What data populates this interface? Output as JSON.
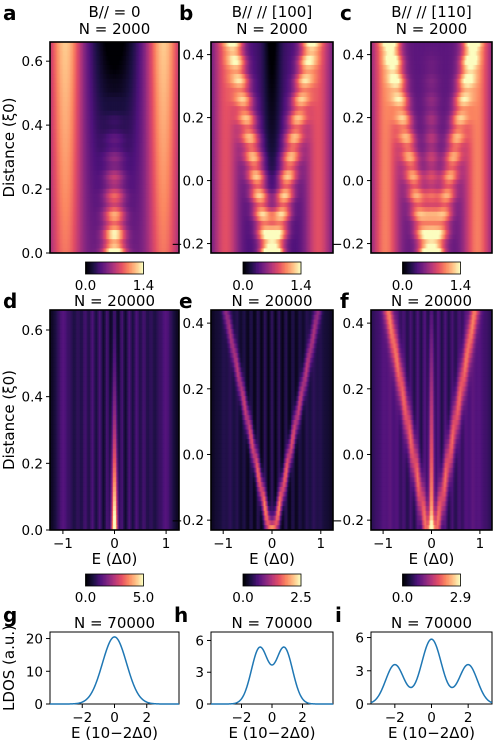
{
  "chart_data": [
    {
      "panel": "a",
      "type": "heatmap",
      "title_lines": [
        "B// = 0",
        "N = 2000"
      ],
      "xlim": [
        -1.25,
        1.25
      ],
      "ylim": [
        0,
        0.66
      ],
      "yticks": [
        0.0,
        0.2,
        0.4,
        0.6
      ],
      "ytick_labels": [
        "0.0",
        "0.2",
        "0.4",
        "0.6"
      ],
      "ylabel": "Distance (ξ0)",
      "pattern": "single_peak",
      "colorbar": {
        "range": [
          0.0,
          1.4
        ],
        "tick_labels": [
          "0.0",
          "1.4"
        ]
      }
    },
    {
      "panel": "b",
      "type": "heatmap",
      "title_lines": [
        "B// // [100]",
        "N = 2000"
      ],
      "xlim": [
        -1.25,
        1.25
      ],
      "ylim": [
        -0.23,
        0.44
      ],
      "yticks": [
        -0.2,
        0.0,
        0.2,
        0.4
      ],
      "ytick_labels": [
        "−0.2",
        "0.0",
        "0.2",
        "0.4"
      ],
      "pattern": "v_split",
      "colorbar": {
        "range": [
          0.0,
          1.4
        ],
        "tick_labels": [
          "0.0",
          "1.4"
        ]
      }
    },
    {
      "panel": "c",
      "type": "heatmap",
      "title_lines": [
        "B// // [110]",
        "N = 2000"
      ],
      "xlim": [
        -1.25,
        1.25
      ],
      "ylim": [
        -0.23,
        0.44
      ],
      "yticks": [
        -0.2,
        0.0,
        0.2,
        0.4
      ],
      "ytick_labels": [
        "−0.2",
        "0.0",
        "0.2",
        "0.4"
      ],
      "pattern": "triple",
      "colorbar": {
        "range": [
          0.0,
          1.4
        ],
        "tick_labels": [
          "0.0",
          "1.4"
        ]
      }
    },
    {
      "panel": "d",
      "type": "heatmap",
      "title_lines": [
        "N = 20000"
      ],
      "xlim": [
        -1.25,
        1.25
      ],
      "ylim": [
        0,
        0.66
      ],
      "yticks": [
        0.0,
        0.2,
        0.4,
        0.6
      ],
      "ytick_labels": [
        "0.0",
        "0.2",
        "0.4",
        "0.6"
      ],
      "xticks": [
        -1,
        0,
        1
      ],
      "xtick_labels": [
        "−1",
        "0",
        "1"
      ],
      "ylabel": "Distance (ξ0)",
      "xlabel": "E (Δ0)",
      "pattern": "fine_single",
      "colorbar": {
        "range": [
          0.0,
          5.0
        ],
        "tick_labels": [
          "0.0",
          "5.0"
        ]
      }
    },
    {
      "panel": "e",
      "type": "heatmap",
      "title_lines": [
        "N = 20000"
      ],
      "xlim": [
        -1.25,
        1.25
      ],
      "ylim": [
        -0.23,
        0.44
      ],
      "yticks": [
        -0.2,
        0.0,
        0.2,
        0.4
      ],
      "ytick_labels": [
        "−0.2",
        "0.0",
        "0.2",
        "0.4"
      ],
      "xticks": [
        -1,
        0,
        1
      ],
      "xtick_labels": [
        "−1",
        "0",
        "1"
      ],
      "xlabel": "E (Δ0)",
      "pattern": "fine_split",
      "colorbar": {
        "range": [
          0.0,
          2.5
        ],
        "tick_labels": [
          "0.0",
          "2.5"
        ]
      }
    },
    {
      "panel": "f",
      "type": "heatmap",
      "title_lines": [
        "N = 20000"
      ],
      "xlim": [
        -1.25,
        1.25
      ],
      "ylim": [
        -0.23,
        0.44
      ],
      "yticks": [
        -0.2,
        0.0,
        0.2,
        0.4
      ],
      "ytick_labels": [
        "−0.2",
        "0.0",
        "0.2",
        "0.4"
      ],
      "xticks": [
        -1,
        0,
        1
      ],
      "xtick_labels": [
        "−1",
        "0",
        "1"
      ],
      "xlabel": "E (Δ0)",
      "pattern": "fine_triple",
      "colorbar": {
        "range": [
          0.0,
          2.9
        ],
        "tick_labels": [
          "0.0",
          "2.9"
        ]
      }
    },
    {
      "panel": "g",
      "type": "line",
      "title_lines": [
        "N = 70000"
      ],
      "xlim": [
        -4,
        4
      ],
      "ylim": [
        0,
        22
      ],
      "xticks": [
        -2,
        0,
        2
      ],
      "xtick_labels": [
        "−2",
        "0",
        "2"
      ],
      "yticks": [
        0,
        10,
        20
      ],
      "ytick_labels": [
        "0",
        "10",
        "20"
      ],
      "ylabel": "LDOS (a.u.)",
      "xlabel": "E (10−2Δ0)",
      "series": [
        {
          "peaks": [
            {
              "x": 0,
              "height": 20.5,
              "width": 0.75
            }
          ]
        }
      ]
    },
    {
      "panel": "h",
      "type": "line",
      "title_lines": [
        "N = 70000"
      ],
      "xlim": [
        -4,
        4
      ],
      "ylim": [
        0,
        6.8
      ],
      "xticks": [
        -2,
        0,
        2
      ],
      "xtick_labels": [
        "−2",
        "0",
        "2"
      ],
      "yticks": [
        0,
        3,
        6
      ],
      "ytick_labels": [
        "0",
        "3",
        "6"
      ],
      "xlabel": "E (10−2Δ0)",
      "series": [
        {
          "peaks": [
            {
              "x": -0.8,
              "height": 5.3,
              "width": 0.55
            },
            {
              "x": 0.8,
              "height": 5.3,
              "width": 0.55
            }
          ]
        }
      ]
    },
    {
      "panel": "i",
      "type": "line",
      "title_lines": [
        "N = 70000"
      ],
      "xlim": [
        -3.3,
        3.3
      ],
      "ylim": [
        0,
        6.5
      ],
      "xticks": [
        -2,
        0,
        2
      ],
      "xtick_labels": [
        "−2",
        "0",
        "2"
      ],
      "yticks": [
        0,
        3,
        6
      ],
      "ytick_labels": [
        "0",
        "3",
        "6"
      ],
      "xlabel": "E (10−2Δ0)",
      "series": [
        {
          "peaks": [
            {
              "x": -2,
              "height": 3.55,
              "width": 0.5
            },
            {
              "x": 0,
              "height": 5.85,
              "width": 0.55
            },
            {
              "x": 2,
              "height": 3.55,
              "width": 0.5
            }
          ]
        }
      ]
    }
  ]
}
